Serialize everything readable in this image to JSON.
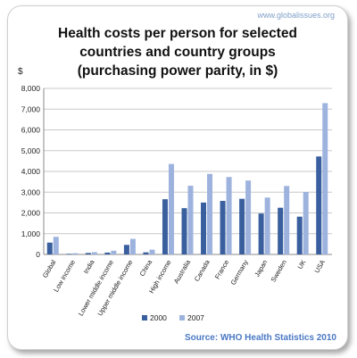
{
  "watermark": "www.globalissues.org",
  "source": "Source: WHO Health Statistics 2010",
  "chart_data": {
    "type": "bar",
    "title_lines": [
      "Health costs per person for selected",
      "countries and country groups",
      "(purchasing power parity, in $)"
    ],
    "ylabel": "$",
    "ylim": [
      0,
      8000
    ],
    "yticks": [
      "0",
      "1,000",
      "2,000",
      "3,000",
      "4,000",
      "5,000",
      "6,000",
      "7,000",
      "8,000"
    ],
    "grid": true,
    "legend_position": "bottom",
    "categories": [
      "Global",
      "Low income",
      "India",
      "Lower middle income",
      "Upper middle income",
      "China",
      "High income",
      "Australia",
      "Canada",
      "France",
      "Germany",
      "Japan",
      "Sweden",
      "UK",
      "USA"
    ],
    "series": [
      {
        "name": "2000",
        "color": "#3a5f9e",
        "values": [
          570,
          30,
          70,
          90,
          460,
          100,
          2660,
          2230,
          2500,
          2580,
          2680,
          1970,
          2250,
          1820,
          4720
        ]
      },
      {
        "name": "2007",
        "color": "#9db3de",
        "values": [
          850,
          60,
          110,
          180,
          750,
          230,
          4360,
          3310,
          3880,
          3730,
          3560,
          2740,
          3300,
          3010,
          7290
        ]
      }
    ]
  }
}
